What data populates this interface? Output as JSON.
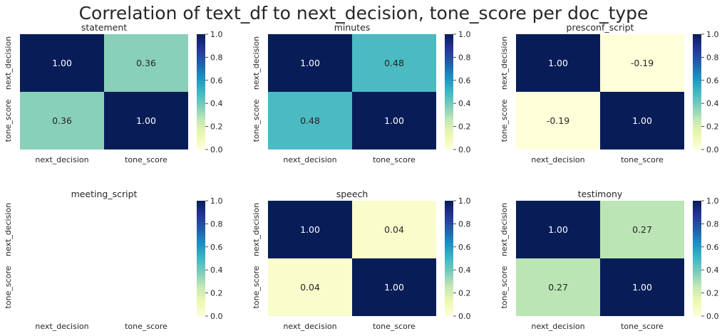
{
  "figure_title": "Correlation of text_df to next_decision, tone_score per doc_type",
  "colormap": {
    "name": "YlGnBu",
    "stops": [
      "#ffffd9",
      "#edf8b1",
      "#c7e9b4",
      "#7fcdbb",
      "#41b6c4",
      "#1d91c0",
      "#225ea8",
      "#253494",
      "#081d58"
    ],
    "vmin": 0,
    "vmax": 1
  },
  "text_colors": {
    "light_cell": "#262626",
    "dark_cell": "#ffffff"
  },
  "chart_data": [
    {
      "type": "heatmap",
      "title": "statement",
      "x_categories": [
        "next_decision",
        "tone_score"
      ],
      "y_categories": [
        "next_decision",
        "tone_score"
      ],
      "values": [
        [
          1.0,
          0.36
        ],
        [
          0.36,
          1.0
        ]
      ],
      "labels": [
        [
          "1.00",
          "0.36"
        ],
        [
          "0.36",
          "1.00"
        ]
      ],
      "colorbar": {
        "range": [
          0,
          1
        ],
        "ticks": [
          "0.0",
          "0.2",
          "0.4",
          "0.6",
          "0.8",
          "1.0"
        ]
      }
    },
    {
      "type": "heatmap",
      "title": "minutes",
      "x_categories": [
        "next_decision",
        "tone_score"
      ],
      "y_categories": [
        "next_decision",
        "tone_score"
      ],
      "values": [
        [
          1.0,
          0.48
        ],
        [
          0.48,
          1.0
        ]
      ],
      "labels": [
        [
          "1.00",
          "0.48"
        ],
        [
          "0.48",
          "1.00"
        ]
      ],
      "colorbar": {
        "range": [
          0,
          1
        ],
        "ticks": [
          "0.0",
          "0.2",
          "0.4",
          "0.6",
          "0.8",
          "1.0"
        ]
      }
    },
    {
      "type": "heatmap",
      "title": "presconf_script",
      "x_categories": [
        "next_decision",
        "tone_score"
      ],
      "y_categories": [
        "next_decision",
        "tone_score"
      ],
      "values": [
        [
          1.0,
          -0.19
        ],
        [
          -0.19,
          1.0
        ]
      ],
      "labels": [
        [
          "1.00",
          "-0.19"
        ],
        [
          "-0.19",
          "1.00"
        ]
      ],
      "colorbar": {
        "range": [
          0,
          1
        ],
        "ticks": [
          "0.0",
          "0.2",
          "0.4",
          "0.6",
          "0.8",
          "1.0"
        ]
      }
    },
    {
      "type": "heatmap",
      "title": "meeting_script",
      "x_categories": [
        "next_decision",
        "tone_score"
      ],
      "y_categories": [
        "next_decision",
        "tone_score"
      ],
      "values": [
        [
          null,
          null
        ],
        [
          null,
          null
        ]
      ],
      "labels": [
        [
          "",
          ""
        ],
        [
          "",
          ""
        ]
      ],
      "colorbar": {
        "range": [
          0,
          1
        ],
        "ticks": [
          "0.0",
          "0.2",
          "0.4",
          "0.6",
          "0.8",
          "1.0"
        ]
      }
    },
    {
      "type": "heatmap",
      "title": "speech",
      "x_categories": [
        "next_decision",
        "tone_score"
      ],
      "y_categories": [
        "next_decision",
        "tone_score"
      ],
      "values": [
        [
          1.0,
          0.04
        ],
        [
          0.04,
          1.0
        ]
      ],
      "labels": [
        [
          "1.00",
          "0.04"
        ],
        [
          "0.04",
          "1.00"
        ]
      ],
      "colorbar": {
        "range": [
          0,
          1
        ],
        "ticks": [
          "0.0",
          "0.2",
          "0.4",
          "0.6",
          "0.8",
          "1.0"
        ]
      }
    },
    {
      "type": "heatmap",
      "title": "testimony",
      "x_categories": [
        "next_decision",
        "tone_score"
      ],
      "y_categories": [
        "next_decision",
        "tone_score"
      ],
      "values": [
        [
          1.0,
          0.27
        ],
        [
          0.27,
          1.0
        ]
      ],
      "labels": [
        [
          "1.00",
          "0.27"
        ],
        [
          "0.27",
          "1.00"
        ]
      ],
      "colorbar": {
        "range": [
          0,
          1
        ],
        "ticks": [
          "0.0",
          "0.2",
          "0.4",
          "0.6",
          "0.8",
          "1.0"
        ]
      }
    }
  ]
}
